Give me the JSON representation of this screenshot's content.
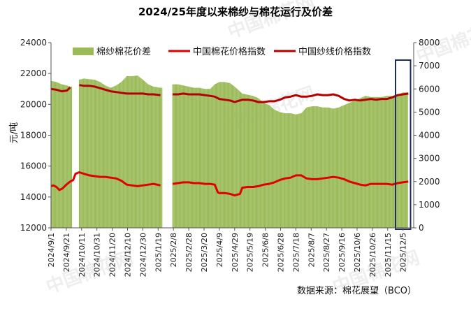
{
  "watermark": "中国棉花网",
  "chart_data": {
    "type": "bar+line",
    "title": "2024/25年度以来棉纱与棉花运行及价差",
    "ylabel": "元/吨",
    "ylim": [
      12000,
      24000
    ],
    "y2lim": [
      0,
      8000
    ],
    "yticks": [
      12000,
      14000,
      16000,
      18000,
      20000,
      22000,
      24000
    ],
    "y2ticks": [
      0,
      1000,
      2000,
      3000,
      4000,
      5000,
      6000,
      7000,
      8000
    ],
    "legend_position": "top",
    "source": "数据来源：棉花展望（BCO）",
    "colors": {
      "bar": "#9bbb59",
      "cotton": "#e00000",
      "yarn": "#b50000",
      "highlight": "#1f2d5a"
    },
    "x_labels": [
      "2024/9/1",
      "2024/9/21",
      "2024/10/11",
      "2024/10/31",
      "2024/11/20",
      "2024/12/10",
      "2024/12/30",
      "2025/1/19",
      "2025/2/8",
      "2025/2/28",
      "2025/3/20",
      "2025/4/9",
      "2025/4/29",
      "2025/5/19",
      "2025/6/8",
      "2025/6/28",
      "2025/7/18",
      "2025/8/7",
      "2025/8/27",
      "2025/9/16",
      "2025/10/6",
      "2025/10/26",
      "2025/11/15",
      "2025/12/5"
    ],
    "series": [
      {
        "name": "棉纱棉花价差",
        "kind": "bar",
        "axis": "right",
        "points": [
          [
            "2024/9/1",
            6350
          ],
          [
            "2024/9/8",
            6300
          ],
          [
            "2024/9/15",
            6200
          ],
          [
            "2024/9/22",
            6150
          ],
          [
            "2024/9/26",
            6100
          ],
          [
            "2024/10/8",
            6400
          ],
          [
            "2024/10/14",
            6450
          ],
          [
            "2024/10/21",
            6420
          ],
          [
            "2024/10/28",
            6400
          ],
          [
            "2024/11/4",
            6300
          ],
          [
            "2024/11/11",
            6150
          ],
          [
            "2024/11/18",
            6050
          ],
          [
            "2024/11/25",
            6150
          ],
          [
            "2024/12/2",
            6300
          ],
          [
            "2024/12/9",
            6550
          ],
          [
            "2024/12/16",
            6550
          ],
          [
            "2024/12/23",
            6580
          ],
          [
            "2024/12/30",
            6400
          ],
          [
            "2025/1/6",
            6200
          ],
          [
            "2025/1/13",
            6100
          ],
          [
            "2025/1/22",
            6050
          ],
          [
            "2025/2/7",
            6200
          ],
          [
            "2025/2/14",
            6200
          ],
          [
            "2025/2/21",
            6150
          ],
          [
            "2025/2/28",
            6100
          ],
          [
            "2025/3/7",
            6050
          ],
          [
            "2025/3/14",
            6050
          ],
          [
            "2025/3/21",
            6000
          ],
          [
            "2025/3/28",
            6000
          ],
          [
            "2025/4/3",
            6200
          ],
          [
            "2025/4/9",
            6300
          ],
          [
            "2025/4/16",
            6300
          ],
          [
            "2025/4/23",
            6250
          ],
          [
            "2025/4/29",
            6100
          ],
          [
            "2025/5/9",
            5800
          ],
          [
            "2025/5/16",
            5750
          ],
          [
            "2025/5/23",
            5700
          ],
          [
            "2025/5/30",
            5600
          ],
          [
            "2025/6/6",
            5400
          ],
          [
            "2025/6/13",
            5300
          ],
          [
            "2025/6/20",
            5100
          ],
          [
            "2025/6/27",
            5000
          ],
          [
            "2025/7/4",
            4950
          ],
          [
            "2025/7/11",
            4950
          ],
          [
            "2025/7/18",
            4900
          ],
          [
            "2025/7/25",
            4950
          ],
          [
            "2025/8/1",
            5200
          ],
          [
            "2025/8/8",
            5250
          ],
          [
            "2025/8/15",
            5250
          ],
          [
            "2025/8/22",
            5200
          ],
          [
            "2025/8/29",
            5200
          ],
          [
            "2025/9/5",
            5150
          ],
          [
            "2025/9/12",
            5200
          ],
          [
            "2025/9/19",
            5300
          ],
          [
            "2025/9/26",
            5400
          ],
          [
            "2025/10/3",
            5500
          ],
          [
            "2025/10/10",
            5600
          ],
          [
            "2025/10/17",
            5700
          ],
          [
            "2025/10/24",
            5650
          ],
          [
            "2025/10/31",
            5650
          ],
          [
            "2025/11/7",
            5650
          ],
          [
            "2025/11/14",
            5700
          ],
          [
            "2025/11/21",
            5700
          ],
          [
            "2025/11/28",
            5750
          ],
          [
            "2025/12/5",
            5850
          ],
          [
            "2025/12/12",
            5850
          ]
        ]
      },
      {
        "name": "中国棉花价格指数",
        "kind": "line",
        "axis": "left",
        "points": [
          [
            "2024/9/1",
            14700
          ],
          [
            "2024/9/4",
            14750
          ],
          [
            "2024/9/8",
            14650
          ],
          [
            "2024/9/12",
            14450
          ],
          [
            "2024/9/16",
            14550
          ],
          [
            "2024/9/21",
            14800
          ],
          [
            "2024/9/26",
            15000
          ],
          [
            "2024/9/30",
            15100
          ],
          [
            "2024/10/3",
            15500
          ],
          [
            "2024/10/8",
            15600
          ],
          [
            "2024/10/14",
            15500
          ],
          [
            "2024/10/21",
            15400
          ],
          [
            "2024/10/28",
            15350
          ],
          [
            "2024/11/4",
            15300
          ],
          [
            "2024/11/11",
            15300
          ],
          [
            "2024/11/18",
            15250
          ],
          [
            "2024/11/25",
            15200
          ],
          [
            "2024/12/2",
            15050
          ],
          [
            "2024/12/9",
            14800
          ],
          [
            "2024/12/16",
            14750
          ],
          [
            "2024/12/23",
            14700
          ],
          [
            "2024/12/30",
            14750
          ],
          [
            "2025/1/6",
            14800
          ],
          [
            "2025/1/13",
            14850
          ],
          [
            "2025/1/22",
            14750
          ],
          [
            "2025/2/7",
            14850
          ],
          [
            "2025/2/14",
            14900
          ],
          [
            "2025/2/21",
            14950
          ],
          [
            "2025/2/28",
            14950
          ],
          [
            "2025/3/7",
            14900
          ],
          [
            "2025/3/14",
            14900
          ],
          [
            "2025/3/21",
            14850
          ],
          [
            "2025/3/28",
            14850
          ],
          [
            "2025/4/3",
            14800
          ],
          [
            "2025/4/7",
            14300
          ],
          [
            "2025/4/9",
            14250
          ],
          [
            "2025/4/16",
            14250
          ],
          [
            "2025/4/23",
            14200
          ],
          [
            "2025/4/29",
            14100
          ],
          [
            "2025/5/6",
            14200
          ],
          [
            "2025/5/9",
            14600
          ],
          [
            "2025/5/16",
            14650
          ],
          [
            "2025/5/23",
            14650
          ],
          [
            "2025/5/30",
            14700
          ],
          [
            "2025/6/6",
            14800
          ],
          [
            "2025/6/13",
            14850
          ],
          [
            "2025/6/20",
            14950
          ],
          [
            "2025/6/27",
            15100
          ],
          [
            "2025/7/4",
            15200
          ],
          [
            "2025/7/11",
            15250
          ],
          [
            "2025/7/18",
            15400
          ],
          [
            "2025/7/25",
            15400
          ],
          [
            "2025/8/1",
            15200
          ],
          [
            "2025/8/8",
            15150
          ],
          [
            "2025/8/15",
            15150
          ],
          [
            "2025/8/22",
            15200
          ],
          [
            "2025/8/29",
            15250
          ],
          [
            "2025/9/5",
            15300
          ],
          [
            "2025/9/12",
            15250
          ],
          [
            "2025/9/19",
            15150
          ],
          [
            "2025/9/26",
            15000
          ],
          [
            "2025/10/3",
            14900
          ],
          [
            "2025/10/10",
            14800
          ],
          [
            "2025/10/17",
            14750
          ],
          [
            "2025/10/24",
            14850
          ],
          [
            "2025/10/31",
            14850
          ],
          [
            "2025/11/7",
            14850
          ],
          [
            "2025/11/14",
            14850
          ],
          [
            "2025/11/21",
            14800
          ],
          [
            "2025/11/28",
            14900
          ],
          [
            "2025/12/5",
            14950
          ],
          [
            "2025/12/12",
            15000
          ]
        ]
      },
      {
        "name": "中国纱线价格指数",
        "kind": "line",
        "axis": "left",
        "points": [
          [
            "2024/9/1",
            21000
          ],
          [
            "2024/9/8",
            20950
          ],
          [
            "2024/9/15",
            20850
          ],
          [
            "2024/9/22",
            20900
          ],
          [
            "2024/9/26",
            21100
          ],
          [
            "2024/10/8",
            21250
          ],
          [
            "2024/10/14",
            21200
          ],
          [
            "2024/10/21",
            21200
          ],
          [
            "2024/10/28",
            21150
          ],
          [
            "2024/11/4",
            21050
          ],
          [
            "2024/11/11",
            20950
          ],
          [
            "2024/11/18",
            20850
          ],
          [
            "2024/11/25",
            20800
          ],
          [
            "2024/12/2",
            20750
          ],
          [
            "2024/12/9",
            20700
          ],
          [
            "2024/12/16",
            20700
          ],
          [
            "2024/12/23",
            20700
          ],
          [
            "2024/12/30",
            20700
          ],
          [
            "2025/1/6",
            20650
          ],
          [
            "2025/1/13",
            20650
          ],
          [
            "2025/1/22",
            20600
          ],
          [
            "2025/2/7",
            20650
          ],
          [
            "2025/2/14",
            20650
          ],
          [
            "2025/2/21",
            20700
          ],
          [
            "2025/2/28",
            20650
          ],
          [
            "2025/3/7",
            20650
          ],
          [
            "2025/3/14",
            20650
          ],
          [
            "2025/3/21",
            20600
          ],
          [
            "2025/3/28",
            20550
          ],
          [
            "2025/4/3",
            20500
          ],
          [
            "2025/4/9",
            20350
          ],
          [
            "2025/4/16",
            20300
          ],
          [
            "2025/4/23",
            20250
          ],
          [
            "2025/4/29",
            20150
          ],
          [
            "2025/5/9",
            20300
          ],
          [
            "2025/5/16",
            20300
          ],
          [
            "2025/5/23",
            20250
          ],
          [
            "2025/5/30",
            20150
          ],
          [
            "2025/6/6",
            20150
          ],
          [
            "2025/6/13",
            20200
          ],
          [
            "2025/6/20",
            20200
          ],
          [
            "2025/6/27",
            20300
          ],
          [
            "2025/7/4",
            20450
          ],
          [
            "2025/7/11",
            20500
          ],
          [
            "2025/7/18",
            20600
          ],
          [
            "2025/7/25",
            20500
          ],
          [
            "2025/8/1",
            20500
          ],
          [
            "2025/8/8",
            20550
          ],
          [
            "2025/8/15",
            20650
          ],
          [
            "2025/8/22",
            20600
          ],
          [
            "2025/8/29",
            20600
          ],
          [
            "2025/9/5",
            20650
          ],
          [
            "2025/9/12",
            20550
          ],
          [
            "2025/9/19",
            20350
          ],
          [
            "2025/9/26",
            20250
          ],
          [
            "2025/10/3",
            20300
          ],
          [
            "2025/10/10",
            20250
          ],
          [
            "2025/10/17",
            20300
          ],
          [
            "2025/10/24",
            20350
          ],
          [
            "2025/10/31",
            20300
          ],
          [
            "2025/11/7",
            20350
          ],
          [
            "2025/11/14",
            20350
          ],
          [
            "2025/11/21",
            20450
          ],
          [
            "2025/11/28",
            20600
          ],
          [
            "2025/12/5",
            20650
          ],
          [
            "2025/12/12",
            20700
          ]
        ]
      }
    ],
    "highlight_range": [
      "2025/11/28",
      "2025/12/14"
    ]
  }
}
